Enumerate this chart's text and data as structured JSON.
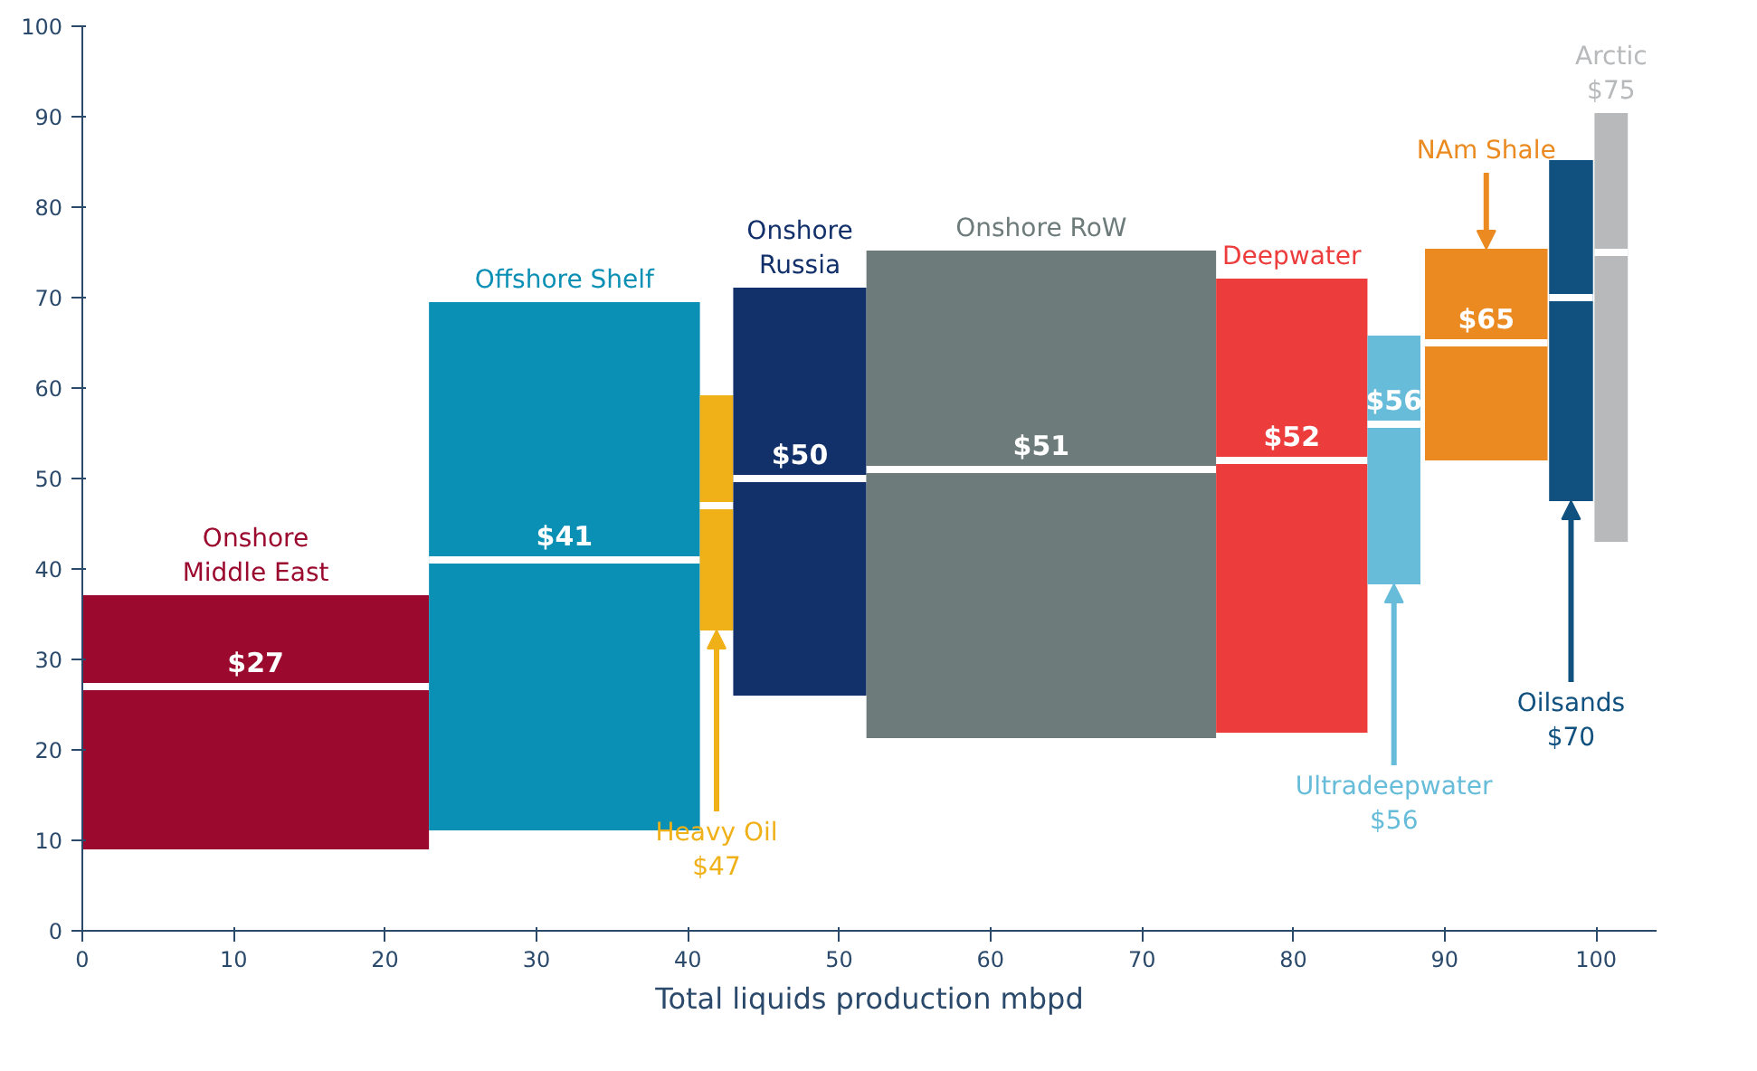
{
  "chart_data": {
    "type": "line",
    "xlabel": "Total liquids production mbpd",
    "xlim": [
      0,
      104
    ],
    "ylim": [
      0,
      100
    ],
    "xticks": [
      0,
      10,
      20,
      30,
      40,
      50,
      60,
      70,
      80,
      90,
      100
    ],
    "yticks": [
      0,
      10,
      20,
      30,
      40,
      50,
      60,
      70,
      80,
      90,
      100
    ],
    "grid": false,
    "series": [
      {
        "color": "#ffffff",
        "colors": [
          "#9b0a2e",
          "#9b0a2e",
          "#9b0a2e"
        ],
        "x": [
          0,
          11.45,
          22.9
        ],
        "values": [
          27,
          27,
          27
        ],
        "lower": [
          9.0,
          9.0,
          9.0
        ],
        "upper": [
          37.1,
          37.1,
          37.1
        ],
        "value_labels": [
          null,
          "$27",
          null
        ]
      },
      {
        "color": "#ffffff",
        "colors": [
          "#0a8fb5",
          "#0a8fb5",
          "#0a8fb5"
        ],
        "x": [
          22.9,
          31.85,
          40.8
        ],
        "values": [
          41,
          41,
          41
        ],
        "lower": [
          11.1,
          11.1,
          11.1
        ],
        "upper": [
          69.5,
          69.5,
          69.5
        ],
        "value_labels": [
          null,
          "$41",
          null
        ]
      },
      {
        "color": "#ffffff",
        "colors": [
          "#f0b018",
          "#f0b018"
        ],
        "x": [
          40.8,
          43.0
        ],
        "values": [
          47,
          47
        ],
        "lower": [
          33.2,
          33.2
        ],
        "upper": [
          59.2,
          59.2
        ]
      },
      {
        "color": "#ffffff",
        "colors": [
          "#12306a",
          "#12306a",
          "#12306a"
        ],
        "x": [
          43.0,
          47.4,
          51.8
        ],
        "values": [
          50,
          50,
          50
        ],
        "lower": [
          26.0,
          26.0,
          26.0
        ],
        "upper": [
          71.1,
          71.1,
          71.1
        ],
        "value_labels": [
          null,
          "$50",
          null
        ]
      },
      {
        "color": "#ffffff",
        "colors": [
          "#6e7b7b",
          "#6e7b7b",
          "#6e7b7b"
        ],
        "x": [
          51.8,
          63.35,
          74.9
        ],
        "values": [
          51,
          51,
          51
        ],
        "lower": [
          21.3,
          21.3,
          21.3
        ],
        "upper": [
          75.2,
          75.2,
          75.2
        ],
        "value_labels": [
          null,
          "$51",
          null
        ]
      },
      {
        "color": "#ffffff",
        "colors": [
          "#ec3c3c",
          "#ec3c3c",
          "#ec3c3c"
        ],
        "x": [
          74.9,
          79.9,
          84.9
        ],
        "values": [
          52,
          52,
          52
        ],
        "lower": [
          21.9,
          21.9,
          21.9
        ],
        "upper": [
          72.1,
          72.1,
          72.1
        ],
        "value_labels": [
          null,
          "$52",
          null
        ]
      },
      {
        "color": "#ffffff",
        "colors": [
          "#66bcd9",
          "#66bcd9",
          "#66bcd9"
        ],
        "x": [
          84.9,
          86.65,
          88.4
        ],
        "values": [
          56,
          56,
          56
        ],
        "lower": [
          38.3,
          38.3,
          38.3
        ],
        "upper": [
          65.8,
          65.8,
          65.8
        ],
        "value_labels": [
          null,
          "$56",
          null
        ]
      },
      {
        "color": "#ffffff",
        "colors": [
          "#ea8a20",
          "#ea8a20",
          "#ea8a20"
        ],
        "x": [
          88.7,
          92.75,
          96.8
        ],
        "values": [
          65,
          65,
          65
        ],
        "lower": [
          52.0,
          52.0,
          52.0
        ],
        "upper": [
          75.4,
          75.4,
          75.4
        ],
        "value_labels": [
          null,
          "$65",
          null
        ]
      },
      {
        "color": "#ffffff",
        "colors": [
          "#11517f",
          "#11517f"
        ],
        "x": [
          96.9,
          99.8
        ],
        "values": [
          70,
          70
        ],
        "lower": [
          47.5,
          47.5
        ],
        "upper": [
          85.2,
          85.2
        ]
      },
      {
        "color": "#ffffff",
        "colors": [
          "#b7b9bb",
          "#b7b9bb"
        ],
        "x": [
          99.9,
          102.1
        ],
        "values": [
          75,
          75
        ],
        "lower": [
          43.0,
          43.0
        ],
        "upper": [
          90.4,
          90.4
        ]
      }
    ],
    "annotations": [
      {
        "text": "Onshore\nMiddle East",
        "x": 11.45,
        "y": 37.1
      },
      {
        "text": "Offshore Shelf",
        "x": 31.85,
        "y": 69.5
      },
      {
        "text": "Heavy Oil\n$47",
        "x": 41.9,
        "y": 33.2
      },
      {
        "text": "Onshore\nRussia",
        "x": 47.4,
        "y": 71.1
      },
      {
        "text": "Onshore RoW",
        "x": 63.35,
        "y": 75.2
      },
      {
        "text": "Deepwater",
        "x": 79.9,
        "y": 72.1
      },
      {
        "text": "Ultradeepwater\n$56",
        "x": 86.65,
        "y": 38.3
      },
      {
        "text": "NAm Shale",
        "x": 92.75,
        "y": 75.4
      },
      {
        "text": "Oilsands\n$70",
        "x": 98.35,
        "y": 47.5
      },
      {
        "text": "Arctic\n$75",
        "x": 101,
        "y": 90.4
      }
    ]
  }
}
